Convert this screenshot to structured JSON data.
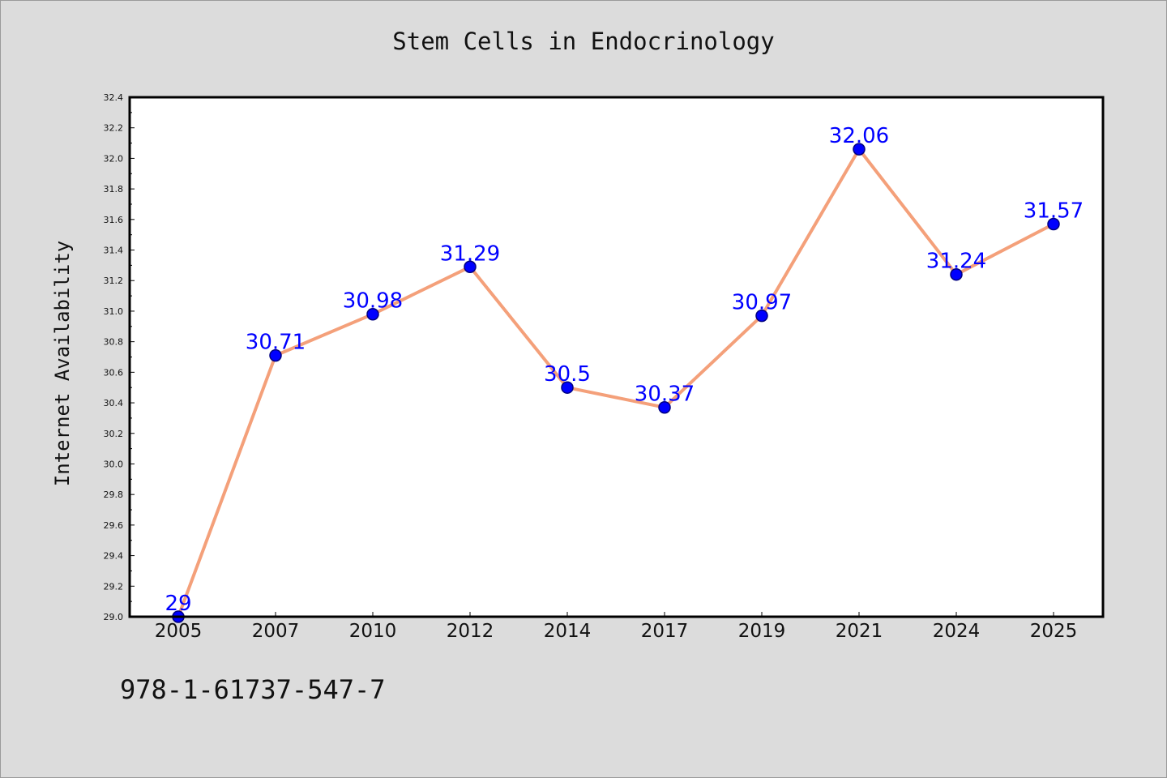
{
  "chart_data": {
    "type": "line",
    "title": "Stem Cells in Endocrinology",
    "xlabel": "",
    "ylabel": "Internet Availability",
    "categories": [
      "2005",
      "2007",
      "2010",
      "2012",
      "2014",
      "2017",
      "2019",
      "2021",
      "2024",
      "2025"
    ],
    "series": [
      {
        "values": [
          29,
          30.71,
          30.98,
          31.29,
          30.5,
          30.37,
          30.97,
          32.06,
          31.24,
          31.57
        ],
        "data_labels": [
          "29",
          "30.71",
          "30.98",
          "31.29",
          "30.5",
          "30.37",
          "30.97",
          "32.06",
          "31.24",
          "31.57"
        ]
      }
    ],
    "ylim": [
      29.0,
      32.4
    ],
    "yticks": [
      "29.0",
      "29.2",
      "29.4",
      "29.6",
      "29.8",
      "30.0",
      "30.2",
      "30.4",
      "30.6",
      "30.8",
      "31.0",
      "31.2",
      "31.4",
      "31.6",
      "31.8",
      "32.0",
      "32.2",
      "32.4"
    ],
    "grid": false,
    "legend": "none",
    "colors": {
      "line": "#f4a07a",
      "marker_fill": "#0000ff",
      "marker_edge": "#000080",
      "data_label": "#0000ff",
      "plot_background": "#ffffff",
      "figure_background": "#dcdcdc"
    }
  },
  "footer": {
    "isbn": "978-1-61737-547-7"
  }
}
